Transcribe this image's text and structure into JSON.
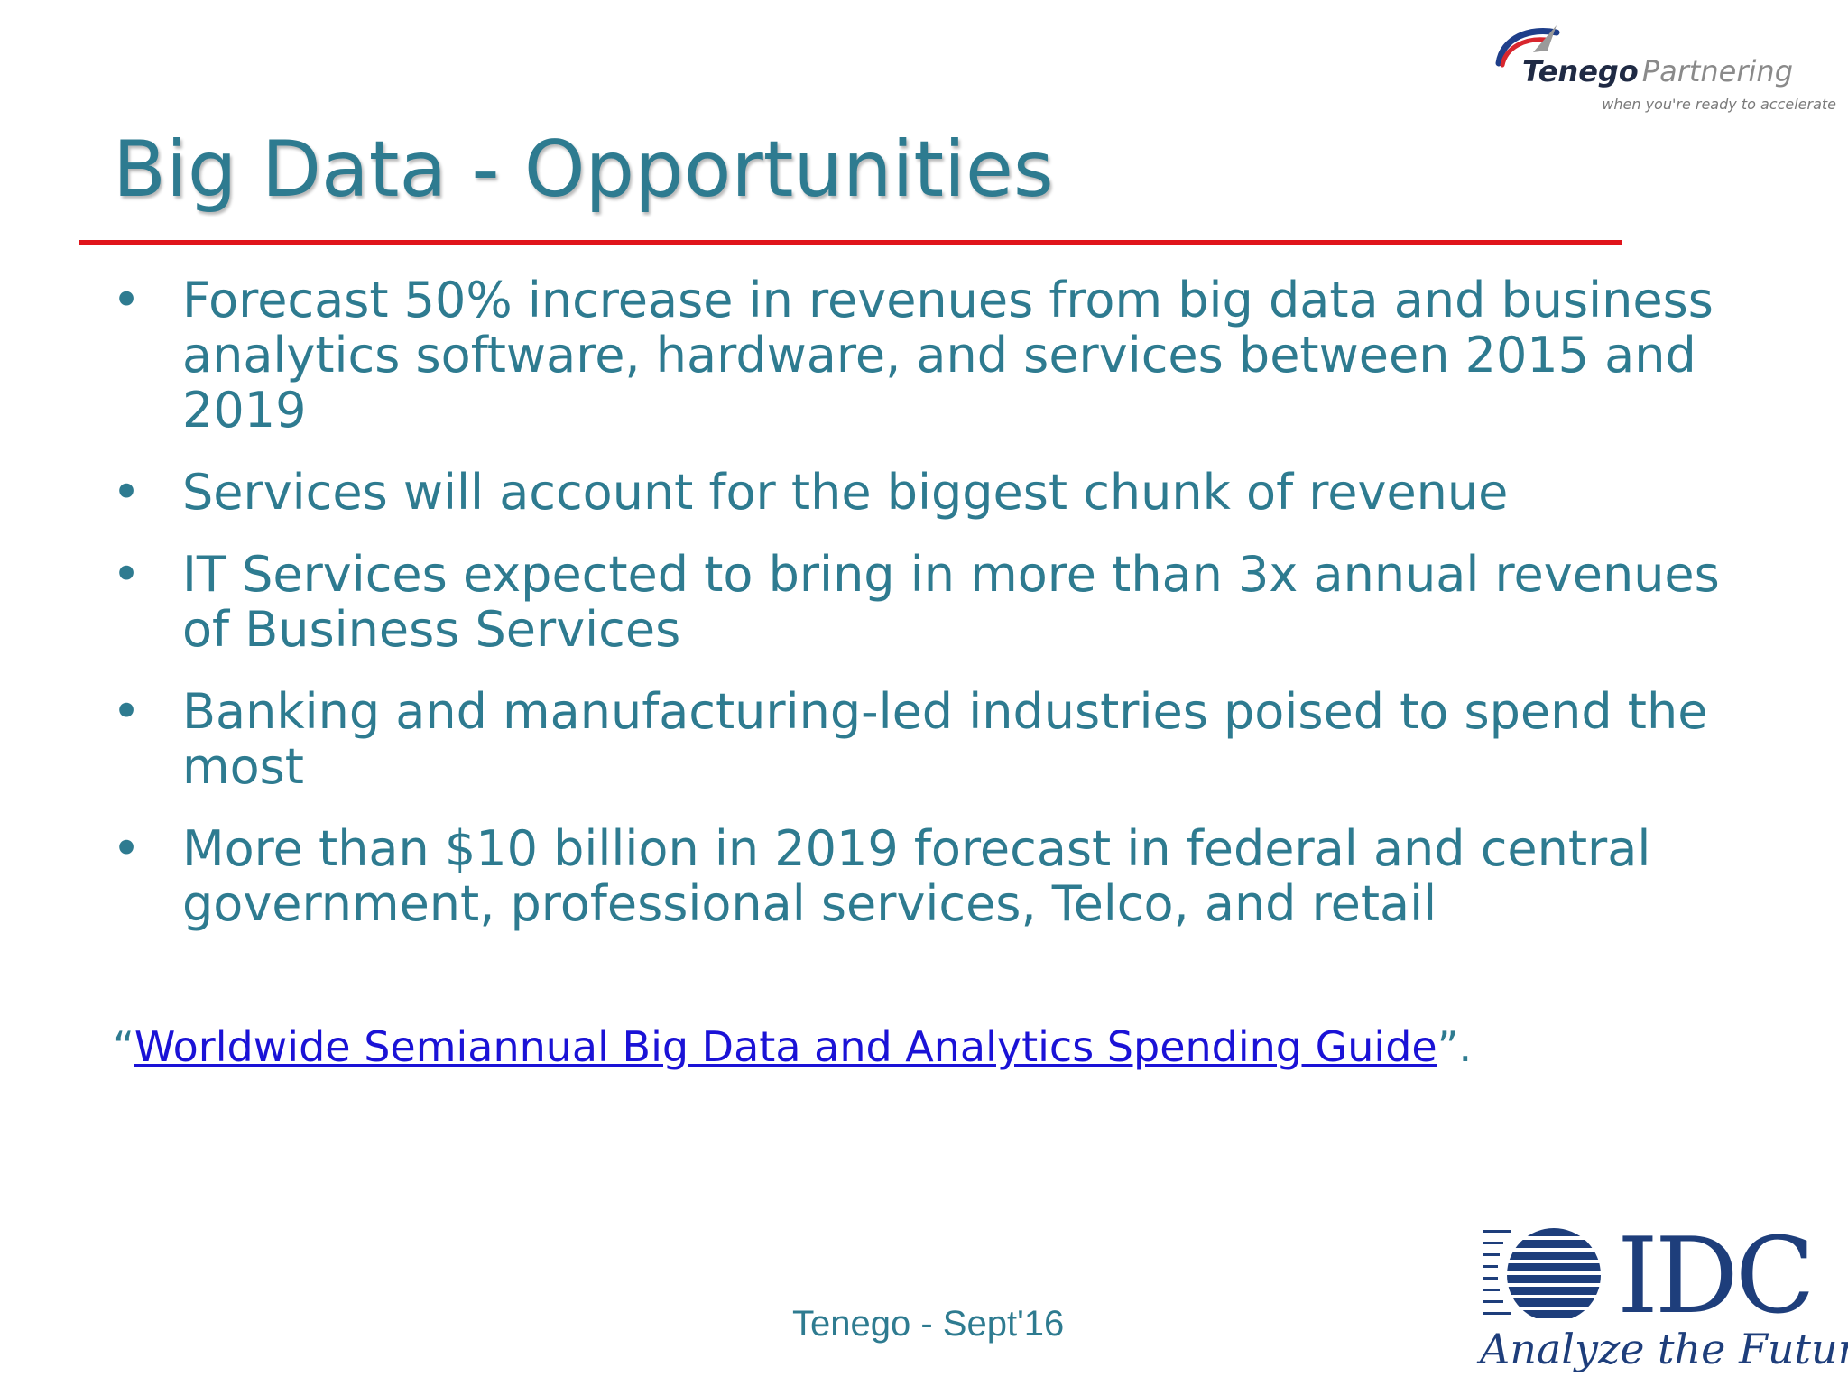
{
  "logo": {
    "brand_bold": "Tenego",
    "brand_light": "Partnering",
    "tagline": "when you're ready to accelerate"
  },
  "title": "Big Data - Opportunities",
  "bullets": [
    "Forecast 50% increase in revenues from big data and business analytics software, hardware, and services between 2015 and 2019",
    "Services will account for the biggest chunk of revenue",
    "IT Services expected to bring in more than 3x annual revenues of Business Services",
    "Banking and manufacturing-led industries poised to spend the most",
    "More than $10 billion in 2019 forecast in federal and central government, professional services, Telco, and retail"
  ],
  "source": {
    "open_quote": "“",
    "link_text": "Worldwide Semiannual Big Data and Analytics Spending Guide",
    "close": "”."
  },
  "footer": "Tenego - Sept'16",
  "idc": {
    "name": "IDC",
    "tagline": "Analyze the Future"
  },
  "colors": {
    "title": "#2e7b90",
    "rule": "#e0141b",
    "link": "#1a12d6",
    "idc": "#1e3e7b"
  }
}
